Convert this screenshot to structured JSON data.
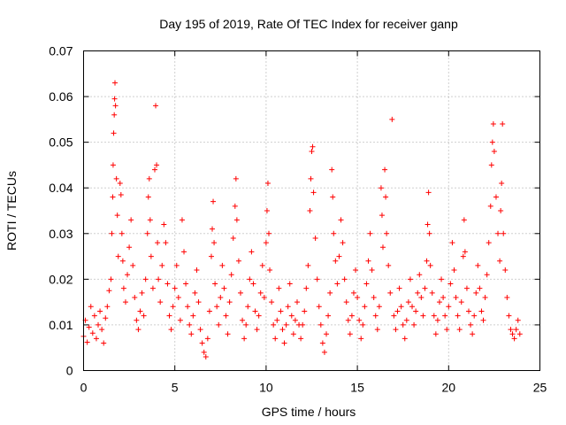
{
  "chart_data": {
    "type": "scatter",
    "title": "Day 195 of 2019, Rate Of TEC Index for receiver ganp",
    "xlabel": "GPS time / hours",
    "ylabel": "ROTI / TECUs",
    "xlim": [
      0,
      25
    ],
    "ylim": [
      0,
      0.07
    ],
    "x_ticks": [
      0,
      5,
      10,
      15,
      20,
      25
    ],
    "y_ticks": [
      0,
      0.01,
      0.02,
      0.03,
      0.04,
      0.05,
      0.06,
      0.07
    ],
    "x_tick_labels": [
      "0",
      "5",
      "10",
      "15",
      "20",
      "25"
    ],
    "y_tick_labels": [
      "0",
      "0.01",
      "0.02",
      "0.03",
      "0.04",
      "0.05",
      "0.06",
      "0.07"
    ],
    "grid": true,
    "marker": "+",
    "color": "#ff0000",
    "series": [
      {
        "name": "ROTI",
        "points": [
          [
            0.0,
            0.0075
          ],
          [
            0.1,
            0.011
          ],
          [
            0.2,
            0.0062
          ],
          [
            0.3,
            0.0095
          ],
          [
            0.4,
            0.014
          ],
          [
            0.5,
            0.0082
          ],
          [
            0.6,
            0.012
          ],
          [
            0.7,
            0.007
          ],
          [
            0.8,
            0.01
          ],
          [
            0.9,
            0.013
          ],
          [
            1.0,
            0.009
          ],
          [
            1.1,
            0.006
          ],
          [
            1.2,
            0.0115
          ],
          [
            1.3,
            0.014
          ],
          [
            1.4,
            0.0175
          ],
          [
            1.5,
            0.02
          ],
          [
            1.55,
            0.03
          ],
          [
            1.6,
            0.038
          ],
          [
            1.62,
            0.045
          ],
          [
            1.65,
            0.052
          ],
          [
            1.68,
            0.056
          ],
          [
            1.7,
            0.0595
          ],
          [
            1.72,
            0.063
          ],
          [
            1.75,
            0.058
          ],
          [
            1.8,
            0.042
          ],
          [
            1.85,
            0.034
          ],
          [
            1.9,
            0.025
          ],
          [
            2.0,
            0.041
          ],
          [
            2.05,
            0.0385
          ],
          [
            2.1,
            0.03
          ],
          [
            2.15,
            0.024
          ],
          [
            2.2,
            0.018
          ],
          [
            2.3,
            0.015
          ],
          [
            2.4,
            0.021
          ],
          [
            2.5,
            0.027
          ],
          [
            2.6,
            0.033
          ],
          [
            2.7,
            0.023
          ],
          [
            2.8,
            0.016
          ],
          [
            2.9,
            0.011
          ],
          [
            3.0,
            0.009
          ],
          [
            3.1,
            0.013
          ],
          [
            3.2,
            0.017
          ],
          [
            3.3,
            0.012
          ],
          [
            3.4,
            0.02
          ],
          [
            3.5,
            0.03
          ],
          [
            3.55,
            0.038
          ],
          [
            3.6,
            0.042
          ],
          [
            3.65,
            0.033
          ],
          [
            3.7,
            0.025
          ],
          [
            3.8,
            0.018
          ],
          [
            3.9,
            0.044
          ],
          [
            3.95,
            0.058
          ],
          [
            4.0,
            0.045
          ],
          [
            4.05,
            0.028
          ],
          [
            4.1,
            0.02
          ],
          [
            4.2,
            0.015
          ],
          [
            4.3,
            0.023
          ],
          [
            4.4,
            0.032
          ],
          [
            4.5,
            0.028
          ],
          [
            4.6,
            0.019
          ],
          [
            4.7,
            0.012
          ],
          [
            4.8,
            0.009
          ],
          [
            4.9,
            0.014
          ],
          [
            5.0,
            0.018
          ],
          [
            5.1,
            0.023
          ],
          [
            5.2,
            0.016
          ],
          [
            5.3,
            0.011
          ],
          [
            5.4,
            0.033
          ],
          [
            5.5,
            0.026
          ],
          [
            5.6,
            0.019
          ],
          [
            5.7,
            0.014
          ],
          [
            5.8,
            0.01
          ],
          [
            5.9,
            0.008
          ],
          [
            6.0,
            0.012
          ],
          [
            6.1,
            0.017
          ],
          [
            6.2,
            0.022
          ],
          [
            6.3,
            0.015
          ],
          [
            6.4,
            0.009
          ],
          [
            6.5,
            0.006
          ],
          [
            6.6,
            0.004
          ],
          [
            6.7,
            0.003
          ],
          [
            6.8,
            0.007
          ],
          [
            6.9,
            0.013
          ],
          [
            7.0,
            0.025
          ],
          [
            7.05,
            0.031
          ],
          [
            7.1,
            0.037
          ],
          [
            7.15,
            0.028
          ],
          [
            7.2,
            0.019
          ],
          [
            7.3,
            0.014
          ],
          [
            7.4,
            0.01
          ],
          [
            7.5,
            0.016
          ],
          [
            7.6,
            0.023
          ],
          [
            7.7,
            0.018
          ],
          [
            7.8,
            0.012
          ],
          [
            7.9,
            0.008
          ],
          [
            8.0,
            0.015
          ],
          [
            8.1,
            0.021
          ],
          [
            8.2,
            0.029
          ],
          [
            8.3,
            0.036
          ],
          [
            8.35,
            0.042
          ],
          [
            8.4,
            0.033
          ],
          [
            8.5,
            0.024
          ],
          [
            8.6,
            0.017
          ],
          [
            8.7,
            0.011
          ],
          [
            8.8,
            0.007
          ],
          [
            8.9,
            0.01
          ],
          [
            9.0,
            0.014
          ],
          [
            9.1,
            0.02
          ],
          [
            9.2,
            0.026
          ],
          [
            9.3,
            0.019
          ],
          [
            9.4,
            0.013
          ],
          [
            9.5,
            0.009
          ],
          [
            9.6,
            0.012
          ],
          [
            9.7,
            0.017
          ],
          [
            9.8,
            0.023
          ],
          [
            9.9,
            0.016
          ],
          [
            10.0,
            0.028
          ],
          [
            10.05,
            0.035
          ],
          [
            10.1,
            0.041
          ],
          [
            10.15,
            0.03
          ],
          [
            10.2,
            0.022
          ],
          [
            10.3,
            0.015
          ],
          [
            10.4,
            0.01
          ],
          [
            10.5,
            0.007
          ],
          [
            10.6,
            0.011
          ],
          [
            10.7,
            0.018
          ],
          [
            10.8,
            0.013
          ],
          [
            10.9,
            0.009
          ],
          [
            11.0,
            0.006
          ],
          [
            11.1,
            0.01
          ],
          [
            11.2,
            0.014
          ],
          [
            11.3,
            0.019
          ],
          [
            11.4,
            0.012
          ],
          [
            11.5,
            0.008
          ],
          [
            11.6,
            0.011
          ],
          [
            11.7,
            0.015
          ],
          [
            11.8,
            0.01
          ],
          [
            11.9,
            0.007
          ],
          [
            12.0,
            0.01
          ],
          [
            12.1,
            0.013
          ],
          [
            12.2,
            0.018
          ],
          [
            12.3,
            0.023
          ],
          [
            12.4,
            0.035
          ],
          [
            12.45,
            0.042
          ],
          [
            12.5,
            0.048
          ],
          [
            12.55,
            0.049
          ],
          [
            12.6,
            0.039
          ],
          [
            12.7,
            0.029
          ],
          [
            12.8,
            0.02
          ],
          [
            12.9,
            0.014
          ],
          [
            13.0,
            0.01
          ],
          [
            13.1,
            0.006
          ],
          [
            13.2,
            0.004
          ],
          [
            13.3,
            0.008
          ],
          [
            13.4,
            0.012
          ],
          [
            13.5,
            0.017
          ],
          [
            13.6,
            0.044
          ],
          [
            13.65,
            0.038
          ],
          [
            13.7,
            0.03
          ],
          [
            13.8,
            0.024
          ],
          [
            13.9,
            0.019
          ],
          [
            14.0,
            0.025
          ],
          [
            14.1,
            0.033
          ],
          [
            14.2,
            0.028
          ],
          [
            14.3,
            0.02
          ],
          [
            14.4,
            0.015
          ],
          [
            14.5,
            0.011
          ],
          [
            14.6,
            0.008
          ],
          [
            14.7,
            0.012
          ],
          [
            14.8,
            0.017
          ],
          [
            14.9,
            0.022
          ],
          [
            15.0,
            0.016
          ],
          [
            15.1,
            0.011
          ],
          [
            15.2,
            0.007
          ],
          [
            15.3,
            0.01
          ],
          [
            15.4,
            0.014
          ],
          [
            15.5,
            0.019
          ],
          [
            15.6,
            0.024
          ],
          [
            15.7,
            0.03
          ],
          [
            15.8,
            0.022
          ],
          [
            15.9,
            0.016
          ],
          [
            16.0,
            0.012
          ],
          [
            16.1,
            0.009
          ],
          [
            16.2,
            0.014
          ],
          [
            16.3,
            0.04
          ],
          [
            16.35,
            0.034
          ],
          [
            16.4,
            0.027
          ],
          [
            16.5,
            0.044
          ],
          [
            16.55,
            0.038
          ],
          [
            16.6,
            0.03
          ],
          [
            16.7,
            0.023
          ],
          [
            16.8,
            0.017
          ],
          [
            16.9,
            0.055
          ],
          [
            17.0,
            0.012
          ],
          [
            17.1,
            0.009
          ],
          [
            17.2,
            0.013
          ],
          [
            17.3,
            0.018
          ],
          [
            17.4,
            0.014
          ],
          [
            17.5,
            0.01
          ],
          [
            17.6,
            0.007
          ],
          [
            17.7,
            0.011
          ],
          [
            17.8,
            0.015
          ],
          [
            17.9,
            0.02
          ],
          [
            18.0,
            0.014
          ],
          [
            18.1,
            0.01
          ],
          [
            18.2,
            0.013
          ],
          [
            18.3,
            0.017
          ],
          [
            18.4,
            0.021
          ],
          [
            18.5,
            0.016
          ],
          [
            18.6,
            0.012
          ],
          [
            18.7,
            0.018
          ],
          [
            18.8,
            0.024
          ],
          [
            18.85,
            0.032
          ],
          [
            18.9,
            0.039
          ],
          [
            18.95,
            0.03
          ],
          [
            19.0,
            0.023
          ],
          [
            19.1,
            0.017
          ],
          [
            19.2,
            0.012
          ],
          [
            19.3,
            0.008
          ],
          [
            19.4,
            0.011
          ],
          [
            19.5,
            0.015
          ],
          [
            19.6,
            0.02
          ],
          [
            19.7,
            0.016
          ],
          [
            19.8,
            0.012
          ],
          [
            19.9,
            0.009
          ],
          [
            20.0,
            0.014
          ],
          [
            20.1,
            0.019
          ],
          [
            20.2,
            0.028
          ],
          [
            20.3,
            0.022
          ],
          [
            20.4,
            0.016
          ],
          [
            20.5,
            0.012
          ],
          [
            20.6,
            0.009
          ],
          [
            20.7,
            0.015
          ],
          [
            20.8,
            0.025
          ],
          [
            20.85,
            0.033
          ],
          [
            20.9,
            0.026
          ],
          [
            21.0,
            0.018
          ],
          [
            21.1,
            0.013
          ],
          [
            21.2,
            0.01
          ],
          [
            21.3,
            0.008
          ],
          [
            21.4,
            0.012
          ],
          [
            21.5,
            0.017
          ],
          [
            21.6,
            0.023
          ],
          [
            21.7,
            0.018
          ],
          [
            21.8,
            0.013
          ],
          [
            21.9,
            0.011
          ],
          [
            22.0,
            0.016
          ],
          [
            22.1,
            0.021
          ],
          [
            22.2,
            0.028
          ],
          [
            22.3,
            0.036
          ],
          [
            22.35,
            0.045
          ],
          [
            22.4,
            0.05
          ],
          [
            22.45,
            0.054
          ],
          [
            22.5,
            0.048
          ],
          [
            22.6,
            0.038
          ],
          [
            22.7,
            0.03
          ],
          [
            22.8,
            0.024
          ],
          [
            22.85,
            0.035
          ],
          [
            22.9,
            0.041
          ],
          [
            22.95,
            0.054
          ],
          [
            23.0,
            0.03
          ],
          [
            23.1,
            0.022
          ],
          [
            23.2,
            0.016
          ],
          [
            23.3,
            0.012
          ],
          [
            23.4,
            0.009
          ],
          [
            23.5,
            0.008
          ],
          [
            23.6,
            0.007
          ],
          [
            23.7,
            0.009
          ],
          [
            23.8,
            0.011
          ],
          [
            23.9,
            0.008
          ]
        ]
      }
    ]
  }
}
